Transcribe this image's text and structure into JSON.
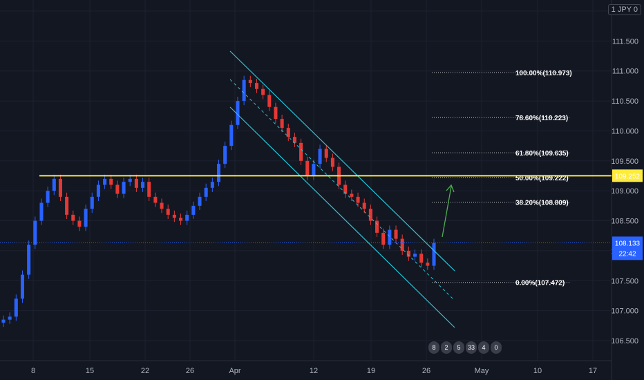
{
  "currency_label": "1 JPY 0",
  "event_counts": [
    "8",
    "2",
    "5",
    "33",
    "4",
    "0"
  ],
  "colors": {
    "background": "#131722",
    "up_candle": "#2962ff",
    "down_candle": "#e53935",
    "resistance": "#ffeb3b",
    "channel": "#26c6da",
    "arrow": "#4caf50",
    "price_badge": "#2962ff"
  },
  "chart_data": {
    "type": "line",
    "title": "",
    "xlabel": "",
    "ylabel": "",
    "x_ticks": [
      "8",
      "15",
      "22",
      "26",
      "Apr",
      "12",
      "19",
      "26",
      "May",
      "10",
      "17"
    ],
    "y_ticks": [
      106.5,
      107.0,
      107.5,
      108.0,
      108.5,
      109.0,
      109.5,
      110.0,
      110.5,
      111.0,
      111.5,
      112.0
    ],
    "ylim": [
      106.3,
      112.15
    ],
    "series": [
      {
        "values": [
          106.85,
          106.9,
          107.2,
          107.6,
          108.1,
          108.5,
          108.8,
          109.0,
          109.2,
          108.9,
          108.6,
          108.5,
          108.4,
          108.7,
          108.9,
          109.1,
          109.2,
          109.1,
          108.95,
          109.15,
          109.2,
          109.05,
          109.15,
          108.9,
          108.8,
          108.7,
          108.6,
          108.55,
          108.5,
          108.6,
          108.75,
          108.9,
          109.05,
          109.15,
          109.45,
          109.75,
          110.1,
          110.5,
          110.85,
          110.8,
          110.7,
          110.6,
          110.4,
          110.2,
          110.05,
          109.9,
          109.8,
          109.5,
          109.25,
          109.45,
          109.7,
          109.55,
          109.4,
          109.1,
          108.95,
          108.9,
          108.8,
          108.7,
          108.5,
          108.3,
          108.1,
          108.35,
          108.2,
          108.0,
          107.9,
          107.95,
          107.8,
          107.75,
          108.13
        ]
      }
    ],
    "current_price": "108.133",
    "countdown": "22:42",
    "resistance": {
      "value": 109.252,
      "label": "109.252"
    },
    "fib_levels": [
      {
        "label": "100.00%(110.973)",
        "value": 110.973
      },
      {
        "label": "78.60%(110.223)",
        "value": 110.223
      },
      {
        "label": "61.80%(109.635)",
        "value": 109.635
      },
      {
        "label": "50.00%(109.222)",
        "value": 109.222
      },
      {
        "label": "38.20%(108.809)",
        "value": 108.809
      },
      {
        "label": "0.00%(107.472)",
        "value": 107.472
      }
    ],
    "grid": true
  }
}
